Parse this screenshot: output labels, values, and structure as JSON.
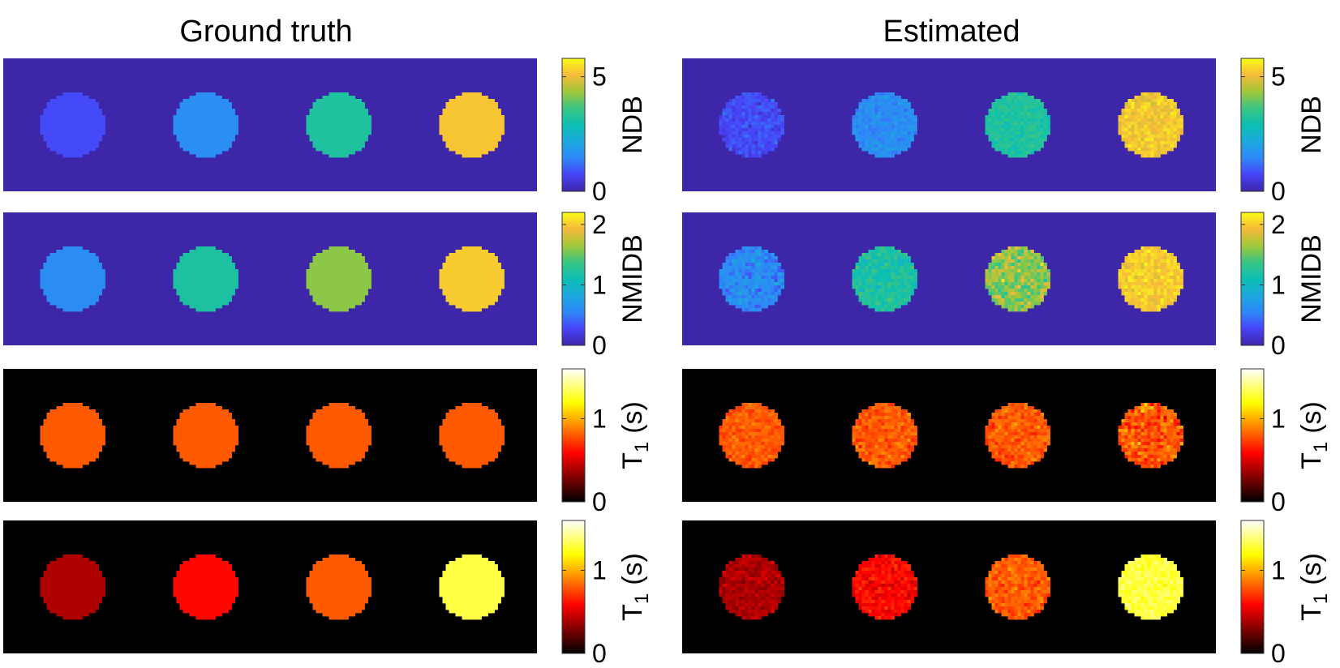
{
  "chart_data": {
    "type": "heatmap",
    "columns": [
      {
        "title": "Ground truth",
        "noise": false
      },
      {
        "title": "Estimated",
        "noise": true
      }
    ],
    "rows": [
      {
        "colormap": "parula",
        "label": "NDB",
        "subscript": "",
        "unit": "",
        "range": [
          0,
          5.8
        ],
        "ticks": [
          {
            "value": 0,
            "label": "0"
          },
          {
            "value": 5,
            "label": "5"
          }
        ],
        "background": 0,
        "circle_values": [
          0.8,
          1.6,
          3.2,
          5.2
        ],
        "noise_level": [
          0.05,
          0.05,
          0.05,
          0.06
        ]
      },
      {
        "colormap": "parula",
        "label": "NMIDB",
        "subscript": "",
        "unit": "",
        "range": [
          0,
          2.2
        ],
        "ticks": [
          {
            "value": 0,
            "label": "0"
          },
          {
            "value": 1,
            "label": "1"
          },
          {
            "value": 2,
            "label": "2"
          }
        ],
        "background": 0,
        "circle_values": [
          0.6,
          1.2,
          1.6,
          2.0
        ],
        "noise_level": [
          0.08,
          0.07,
          0.11,
          0.06
        ]
      },
      {
        "colormap": "hot",
        "label": "T",
        "subscript": "1",
        "unit": "(s)",
        "range": [
          0,
          1.6
        ],
        "ticks": [
          {
            "value": 0,
            "label": "0"
          },
          {
            "value": 1,
            "label": "1"
          }
        ],
        "background": 0,
        "circle_values": [
          0.8,
          0.8,
          0.8,
          0.8
        ],
        "noise_level": [
          0.05,
          0.06,
          0.06,
          0.1
        ]
      },
      {
        "colormap": "hot",
        "label": "T",
        "subscript": "1",
        "unit": "(s)",
        "range": [
          0,
          1.6
        ],
        "ticks": [
          {
            "value": 0,
            "label": "0"
          },
          {
            "value": 1,
            "label": "1"
          }
        ],
        "background": 0,
        "circle_values": [
          0.4,
          0.6,
          0.8,
          1.3
        ],
        "noise_level": [
          0.05,
          0.06,
          0.06,
          0.05
        ]
      }
    ]
  }
}
